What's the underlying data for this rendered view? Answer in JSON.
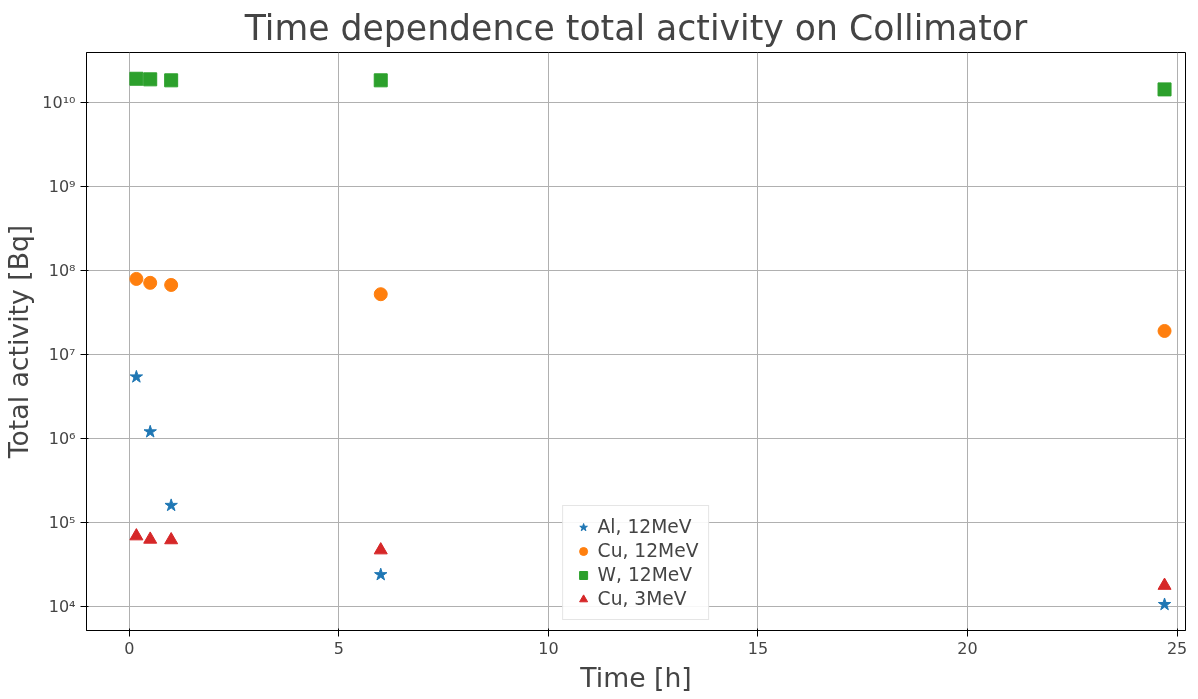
{
  "chart_data": {
    "type": "scatter",
    "title": "Time dependence total activity on Collimator",
    "xlabel": "Time [h]",
    "ylabel": "Total activity [Bq]",
    "log": "y",
    "grid": true,
    "legend": "bottom",
    "xlim": [
      -1.02,
      25.2
    ],
    "xticks": [
      0,
      5,
      10,
      15,
      20,
      25
    ],
    "ylim": [
      5200,
      39000000000
    ],
    "yticks": [
      {
        "value": 10000,
        "label": "10⁴"
      },
      {
        "value": 100000,
        "label": "10⁵"
      },
      {
        "value": 1000000,
        "label": "10⁶"
      },
      {
        "value": 10000000,
        "label": "10⁷"
      },
      {
        "value": 100000000,
        "label": "10⁸"
      },
      {
        "value": 1000000000,
        "label": "10⁹"
      },
      {
        "value": 10000000000,
        "label": "10¹⁰"
      }
    ],
    "x": [
      0.17,
      0.5,
      1,
      6,
      24.7
    ],
    "series": [
      {
        "name": "Al, 12MeV",
        "color": "#1f77b4",
        "marker": "star",
        "values": [
          5400000,
          1200000,
          160000,
          24000,
          10600
        ]
      },
      {
        "name": "Cu, 12MeV",
        "color": "#ff7f0e",
        "marker": "circle",
        "values": [
          79000000,
          71000000,
          67000000,
          52000000,
          19000000
        ]
      },
      {
        "name": "W, 12MeV",
        "color": "#2ca02c",
        "marker": "square",
        "values": [
          19000000000,
          18700000000,
          18200000000,
          18200000000,
          14200000000
        ]
      },
      {
        "name": "Cu, 3MeV",
        "color": "#d62728",
        "marker": "triangle",
        "values": [
          69000,
          63000,
          62000,
          47000,
          17800
        ]
      }
    ]
  }
}
